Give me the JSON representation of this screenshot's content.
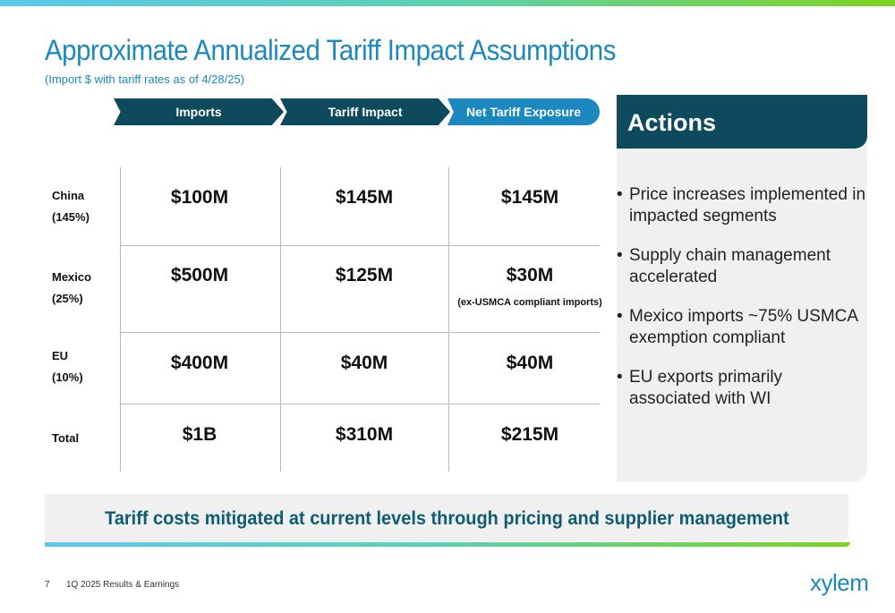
{
  "title": "Approximate Annualized Tariff Impact Assumptions",
  "subtitle": "(Import $ with tariff rates as of 4/28/25)",
  "columns": [
    "Imports",
    "Tariff Impact",
    "Net Tariff Exposure"
  ],
  "rows": [
    {
      "name": "China",
      "rate": "(145%)",
      "imports": "$100M",
      "tariff_impact": "$145M",
      "net_exposure": "$145M",
      "note": ""
    },
    {
      "name": "Mexico",
      "rate": "(25%)",
      "imports": "$500M",
      "tariff_impact": "$125M",
      "net_exposure": "$30M",
      "note": "(ex-USMCA compliant imports)"
    },
    {
      "name": "EU",
      "rate": "(10%)",
      "imports": "$400M",
      "tariff_impact": "$40M",
      "net_exposure": "$40M",
      "note": ""
    },
    {
      "name": "Total",
      "rate": "",
      "imports": "$1B",
      "tariff_impact": "$310M",
      "net_exposure": "$215M",
      "note": ""
    }
  ],
  "actions": {
    "heading": "Actions",
    "bullet": "•",
    "items": [
      "Price increases implemented in impacted segments",
      "Supply chain management accelerated",
      "Mexico imports ~75% USMCA exemption compliant",
      "EU exports primarily associated with WI"
    ]
  },
  "banner": "Tariff costs mitigated at current levels through pricing and supplier management",
  "footer": {
    "page": "7",
    "label": "1Q 2025 Results & Earnings"
  },
  "logo": "xylem",
  "colors": {
    "dark_teal": "#0d4a5e",
    "accent_blue": "#1b89c0",
    "green": "#7ed321"
  }
}
